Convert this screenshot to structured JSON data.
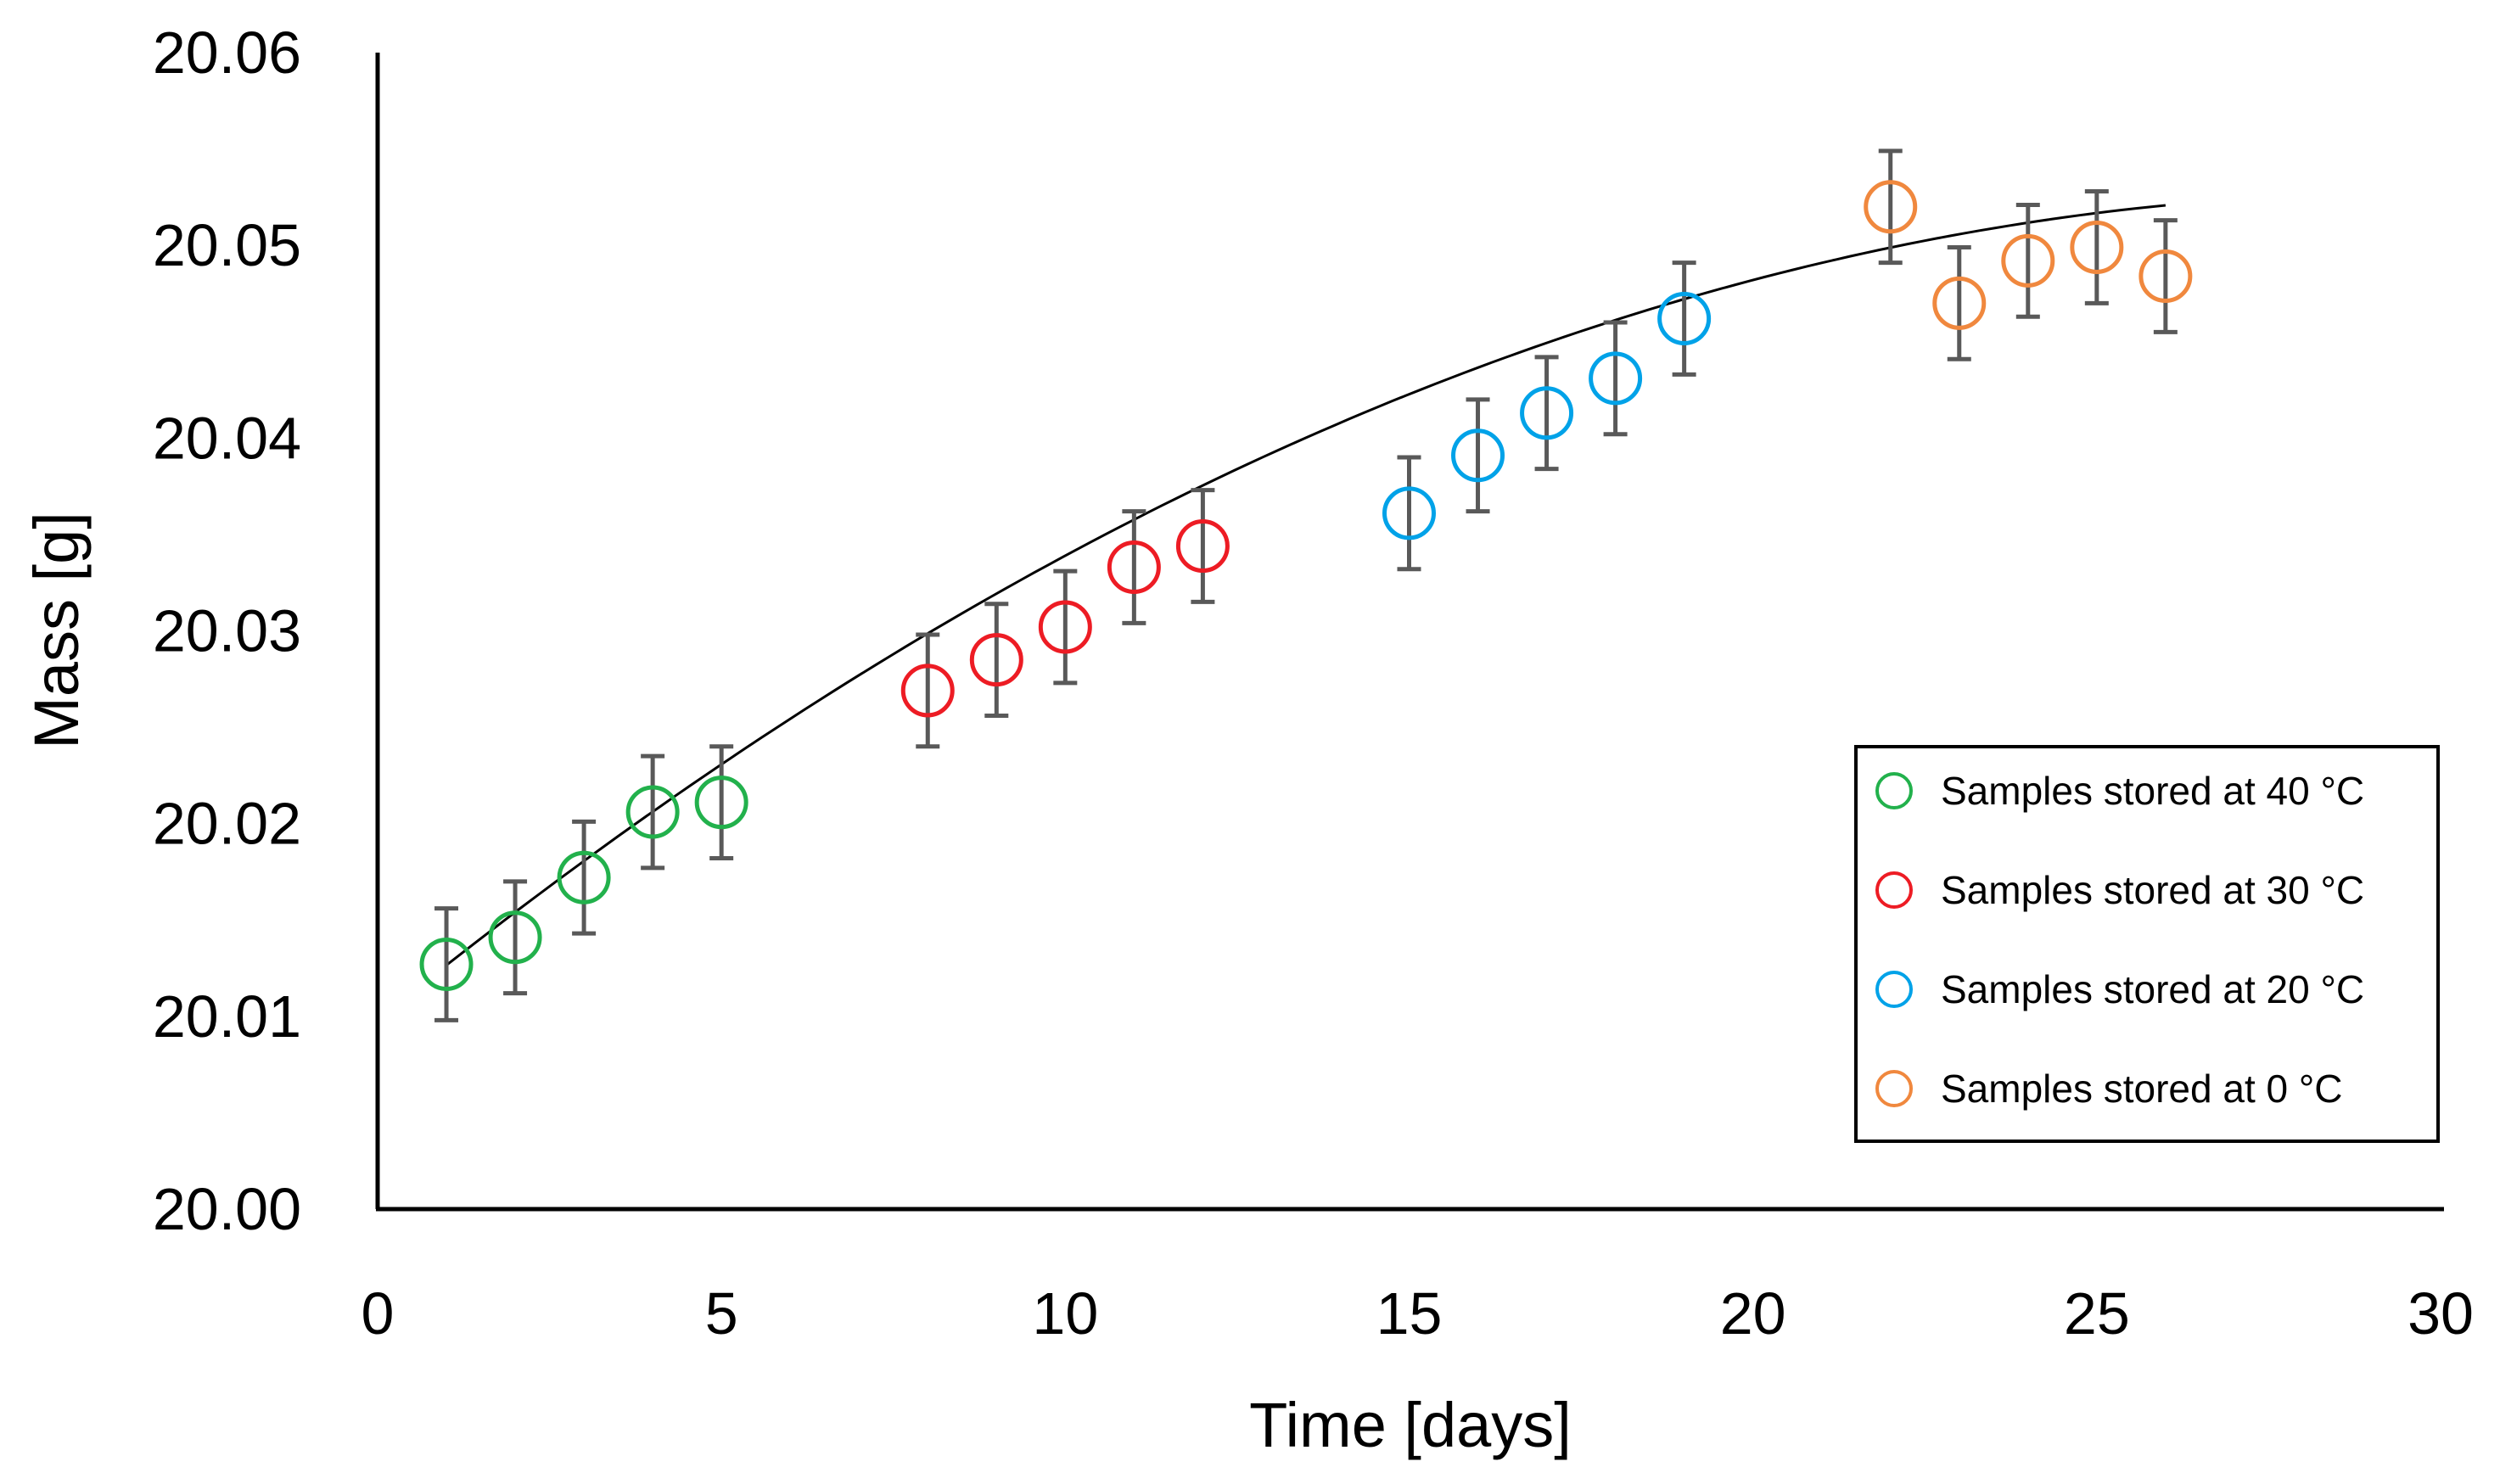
{
  "chart_data": {
    "type": "scatter",
    "title": "",
    "xlabel": "Time [days]",
    "ylabel": "Mass [g]",
    "xlim": [
      0,
      30
    ],
    "ylim": [
      20.0,
      20.06
    ],
    "x_ticks": [
      "0",
      "5",
      "10",
      "15",
      "20",
      "25",
      "30"
    ],
    "y_ticks": [
      "20.00",
      "20.01",
      "20.02",
      "20.03",
      "20.04",
      "20.05",
      "20.06"
    ],
    "grid": false,
    "legend_position": "bottom-right",
    "error_bar": 0.0029,
    "series": [
      {
        "name": "Samples stored at 40 °C",
        "color": "#22b14c",
        "x": [
          1,
          2,
          3,
          4,
          5
        ],
        "y": [
          20.0127,
          20.0141,
          20.0172,
          20.0206,
          20.0211
        ]
      },
      {
        "name": "Samples stored at 30 °C",
        "color": "#ed1c24",
        "x": [
          8,
          9,
          10,
          11,
          12
        ],
        "y": [
          20.0269,
          20.0285,
          20.0302,
          20.0333,
          20.0344
        ]
      },
      {
        "name": "Samples stored at 20 °C",
        "color": "#00a2e8",
        "x": [
          15,
          16,
          17,
          18,
          19
        ],
        "y": [
          20.0361,
          20.0391,
          20.0413,
          20.0431,
          20.0462
        ]
      },
      {
        "name": "Samples stored at 0 °C",
        "color": "#f0883e",
        "x": [
          22,
          23,
          24,
          25,
          26
        ],
        "y": [
          20.052,
          20.047,
          20.0492,
          20.0499,
          20.0484
        ]
      }
    ],
    "trendline": {
      "type": "polynomial",
      "color": "#000000",
      "x_range": [
        1,
        26
      ],
      "coefficients": [
        20.0098,
        0.0029,
        -4.9e-05
      ]
    }
  }
}
